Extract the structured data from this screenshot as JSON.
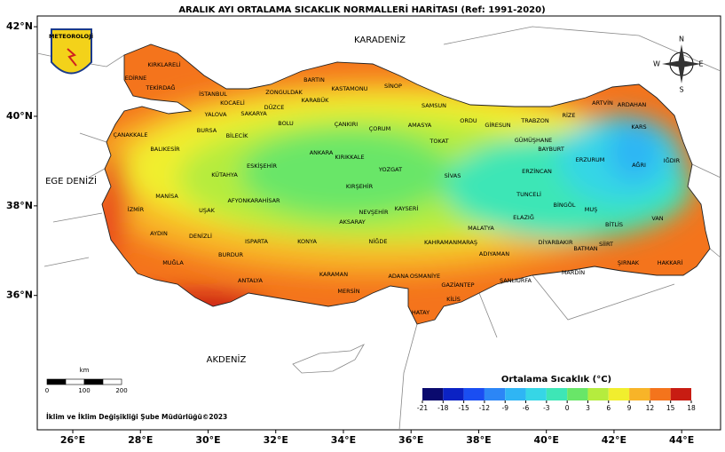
{
  "title": "ARALIK AYI ORTALAMA SICAKLIK NORMALLERİ HARİTASI (Ref: 1991-2020)",
  "map": {
    "xlim": [
      24.95,
      45.15
    ],
    "ylim": [
      33,
      42.24
    ],
    "xticks": [
      {
        "value": 26,
        "label": "26°E"
      },
      {
        "value": 28,
        "label": "28°E"
      },
      {
        "value": 30,
        "label": "30°E"
      },
      {
        "value": 32,
        "label": "32°E"
      },
      {
        "value": 34,
        "label": "34°E"
      },
      {
        "value": 36,
        "label": "36°E"
      },
      {
        "value": 38,
        "label": "38°E"
      },
      {
        "value": 40,
        "label": "40°E"
      },
      {
        "value": 42,
        "label": "42°E"
      },
      {
        "value": 44,
        "label": "44°E"
      }
    ],
    "yticks": [
      {
        "value": 42,
        "label": "42°N"
      },
      {
        "value": 40,
        "label": "40°N"
      },
      {
        "value": 38,
        "label": "38°N"
      },
      {
        "value": 36,
        "label": "36°N"
      }
    ]
  },
  "logo": "METEOROLOJİ",
  "compass": {
    "north": "N",
    "south": "S",
    "east": "E",
    "west": "W"
  },
  "seas": [
    "KARADENİZ",
    "EGE DENİZİ",
    "AKDENİZ"
  ],
  "provinces": [
    "KIRKLARELİ",
    "EDİRNE",
    "TEKİRDAĞ",
    "İSTANBUL",
    "KOCAELİ",
    "SAKARYA",
    "DÜZCE",
    "ZONGULDAK",
    "BARTIN",
    "KASTAMONU",
    "SİNOP",
    "KARABÜK",
    "YALOVA",
    "BURSA",
    "BİLECİK",
    "BOLU",
    "ÇANKIRI",
    "ÇORUM",
    "SAMSUN",
    "AMASYA",
    "ORDU",
    "GİRESUN",
    "TRABZON",
    "RİZE",
    "ARTVİN",
    "ARDAHAN",
    "KARS",
    "ÇANAKKALE",
    "BALIKESİR",
    "GÜMÜŞHANE",
    "BAYBURT",
    "TOKAT",
    "ERZURUM",
    "AĞRI",
    "IĞDIR",
    "ESKİŞEHİR",
    "ANKARA",
    "KIRIKKALE",
    "YOZGAT",
    "SİVAS",
    "ERZİNCAN",
    "KÜTAHYA",
    "KIRŞEHİR",
    "TUNCELİ",
    "MANİSA",
    "AFYONKARAHİSAR",
    "UŞAK",
    "NEVŞEHİR",
    "KAYSERİ",
    "AKSARAY",
    "BİNGÖL",
    "ELAZIĞ",
    "MUŞ",
    "BİTLİS",
    "VAN",
    "İZMİR",
    "MALATYA",
    "AYDIN",
    "DENİZLİ",
    "KONYA",
    "NİĞDE",
    "KAHRAMANMARAŞ",
    "ISPARTA",
    "DİYARBAKIR",
    "BATMAN",
    "SİİRT",
    "ADIYAMAN",
    "BURDUR",
    "MUĞLA",
    "ŞIRNAK",
    "HAKKARİ",
    "MARDİN",
    "KARAMAN",
    "ANTALYA",
    "ADANA",
    "OSMANİYE",
    "GAZİANTEP",
    "ŞANLIURFA",
    "MERSİN",
    "KİLİS",
    "HATAY"
  ],
  "legend": {
    "title": "Ortalama Sıcaklık (°C)",
    "ticks": [
      -21,
      -18,
      -15,
      -12,
      -9,
      -6,
      -3,
      0,
      3,
      6,
      9,
      12,
      15,
      18
    ],
    "colors": [
      "#0a0a6e",
      "#0b22c4",
      "#1a4ef2",
      "#2c86f6",
      "#2fb5f4",
      "#36d6e6",
      "#3ee6b6",
      "#69e668",
      "#b5ec3e",
      "#f1ee2e",
      "#f8b428",
      "#f4741c",
      "#c81c12"
    ]
  },
  "scale": {
    "unit": "km",
    "ticks": [
      0,
      100,
      200
    ]
  },
  "footer": "İklim ve İklim Değişikliği Şube Müdürlüğü©2023"
}
